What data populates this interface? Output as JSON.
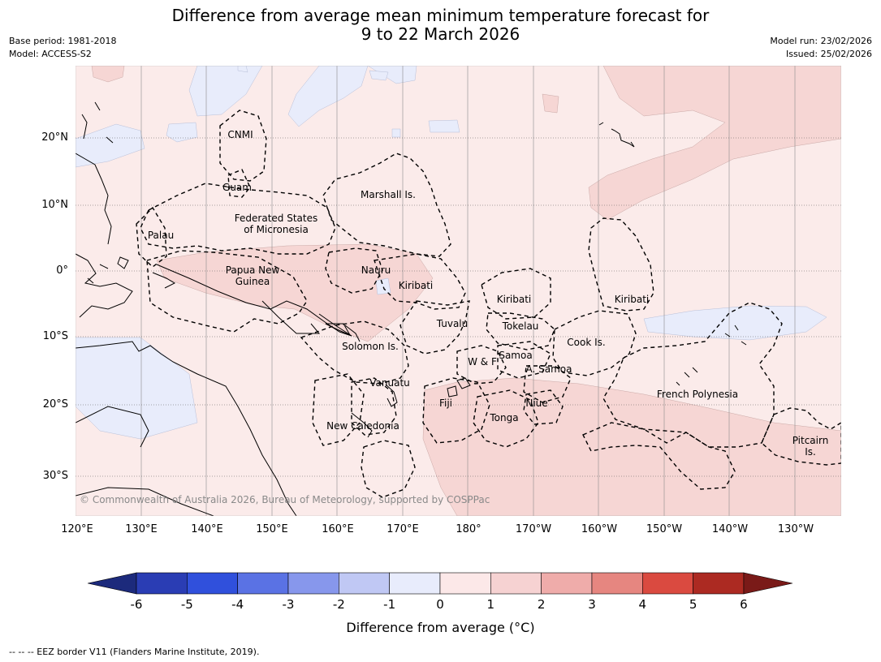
{
  "header": {
    "title_line1": "Difference from average mean minimum temperature forecast for",
    "title_line2": "9 to 22 March 2026",
    "base_period": "Base period: 1981-2018",
    "model": "Model: ACCESS-S2",
    "model_run": "Model run: 23/02/2026",
    "issued": "Issued: 25/02/2026"
  },
  "map": {
    "lon_labels": [
      "120°E",
      "130°E",
      "140°E",
      "150°E",
      "160°E",
      "170°E",
      "180°",
      "170°W",
      "160°W",
      "150°W",
      "140°W",
      "130°W"
    ],
    "lat_labels": [
      "20°N",
      "10°N",
      "0°",
      "10°S",
      "20°S",
      "30°S"
    ],
    "copyright": "© Commonwealth of Australia 2026, Bureau of Meteorology, supported by COSPPac",
    "regions": [
      {
        "id": "cnmi",
        "lines": [
          "CNMI"
        ]
      },
      {
        "id": "guam",
        "lines": [
          "Guam"
        ]
      },
      {
        "id": "marshall",
        "lines": [
          "Marshall Is."
        ]
      },
      {
        "id": "fsm",
        "lines": [
          "Federated States",
          "of Micronesia"
        ]
      },
      {
        "id": "palau",
        "lines": [
          "Palau"
        ]
      },
      {
        "id": "png",
        "lines": [
          "Papua New",
          "Guinea"
        ]
      },
      {
        "id": "nauru",
        "lines": [
          "Nauru"
        ]
      },
      {
        "id": "kiribati_w",
        "lines": [
          "Kiribati"
        ]
      },
      {
        "id": "kiribati_c",
        "lines": [
          "Kiribati"
        ]
      },
      {
        "id": "kiribati_e",
        "lines": [
          "Kiribati"
        ]
      },
      {
        "id": "tuvalu",
        "lines": [
          "Tuvalu"
        ]
      },
      {
        "id": "tokelau",
        "lines": [
          "Tokelau"
        ]
      },
      {
        "id": "cook",
        "lines": [
          "Cook Is."
        ]
      },
      {
        "id": "solomon",
        "lines": [
          "Solomon Is."
        ]
      },
      {
        "id": "samoa",
        "lines": [
          "Samoa"
        ]
      },
      {
        "id": "wf",
        "lines": [
          "W & F"
        ]
      },
      {
        "id": "asamoa",
        "lines": [
          "A. Samoa"
        ]
      },
      {
        "id": "vanuatu",
        "lines": [
          "Vanuatu"
        ]
      },
      {
        "id": "fiji",
        "lines": [
          "Fiji"
        ]
      },
      {
        "id": "niue",
        "lines": [
          "Niue"
        ]
      },
      {
        "id": "tonga",
        "lines": [
          "Tonga"
        ]
      },
      {
        "id": "frpoly",
        "lines": [
          "French Polynesia"
        ]
      },
      {
        "id": "newcal",
        "lines": [
          "New Caledonia"
        ]
      },
      {
        "id": "pitcairn",
        "lines": [
          "Pitcairn",
          "Is."
        ]
      }
    ]
  },
  "colorbar": {
    "ticks": [
      "-6",
      "-5",
      "-4",
      "-3",
      "-2",
      "-1",
      "0",
      "1",
      "2",
      "3",
      "4",
      "5",
      "6"
    ],
    "colors": [
      "#1c2a7c",
      "#2a3db4",
      "#3050dc",
      "#5a72e4",
      "#8797ec",
      "#c0c8f4",
      "#e8ecfc",
      "#fce8e8",
      "#f6d2d2",
      "#efacaa",
      "#e68680",
      "#da4a40",
      "#ac2a22",
      "#7a1a18"
    ],
    "label": "Difference from average (°C)"
  },
  "footer": {
    "legend_text": "--  --  -- EEZ border V11 (Flanders Marine Institute, 2019)."
  },
  "fill_colors": {
    "base": "#fbebea",
    "warm": "#f6d6d4",
    "cool": "#e8ecfb"
  }
}
